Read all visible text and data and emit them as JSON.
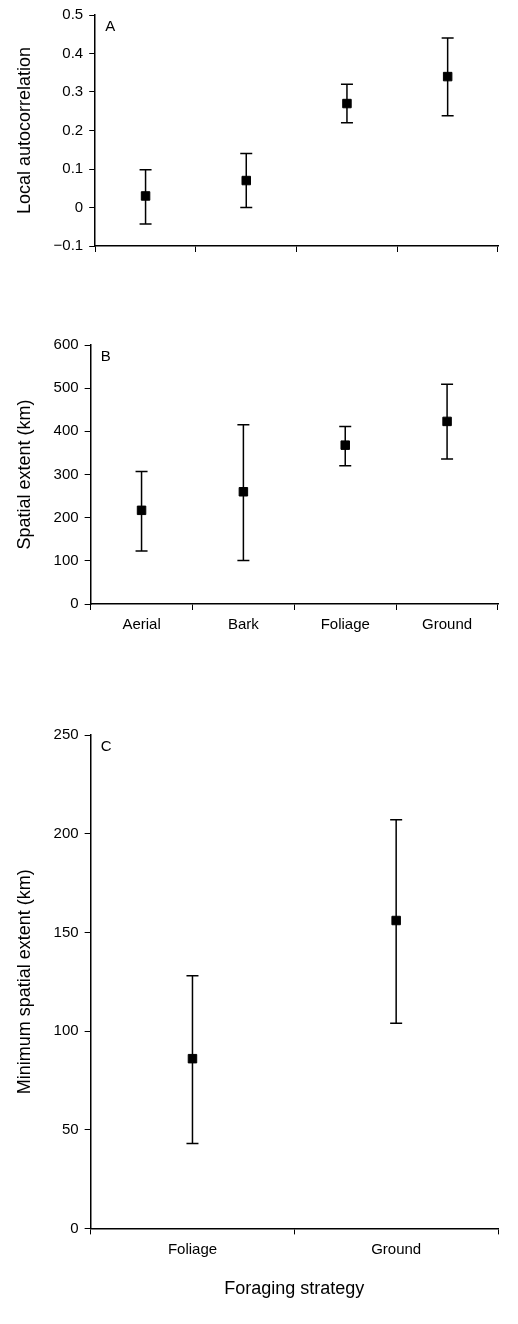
{
  "chart_data": [
    {
      "type": "scatter",
      "categories": [
        null,
        null,
        null,
        null
      ],
      "values": [
        0.03,
        0.07,
        0.27,
        0.34
      ],
      "errors": [
        [
          -0.043,
          0.098
        ],
        [
          0,
          0.14
        ],
        [
          0.22,
          0.32
        ],
        [
          0.238,
          0.44
        ]
      ],
      "color": "#000000",
      "marker": "square",
      "ylabel": "Local autocorrelation",
      "ylim": [
        -0.1,
        0.5
      ],
      "yticks": [
        {
          "value": -0.1,
          "label": "−0.1"
        },
        0,
        0.1,
        0.2,
        0.3,
        0.4,
        0.5
      ],
      "annotations": [
        "A"
      ]
    },
    {
      "type": "scatter",
      "categories": [
        "Aerial",
        "Bark",
        "Foliage",
        "Ground"
      ],
      "values": [
        217,
        260,
        368,
        423
      ],
      "errors": [
        [
          123,
          307
        ],
        [
          101,
          415
        ],
        [
          320,
          411
        ],
        [
          336,
          509
        ]
      ],
      "color": "#000000",
      "marker": "square",
      "ylabel": "Spatial extent (km)",
      "ylim": [
        0,
        600
      ],
      "yticks": [
        0,
        100,
        200,
        300,
        400,
        500,
        600
      ],
      "annotations": [
        "B"
      ]
    },
    {
      "type": "scatter",
      "categories": [
        "Foliage",
        "Ground"
      ],
      "values": [
        86,
        156
      ],
      "errors": [
        [
          43,
          128
        ],
        [
          104,
          207
        ]
      ],
      "color": "#000000",
      "marker": "square",
      "xlabel": "Foraging strategy",
      "ylabel": "Minimum spatial extent (km)",
      "ylim": [
        0,
        250
      ],
      "yticks": [
        0,
        50,
        100,
        150,
        200,
        250
      ],
      "annotations": [
        "C"
      ]
    }
  ]
}
